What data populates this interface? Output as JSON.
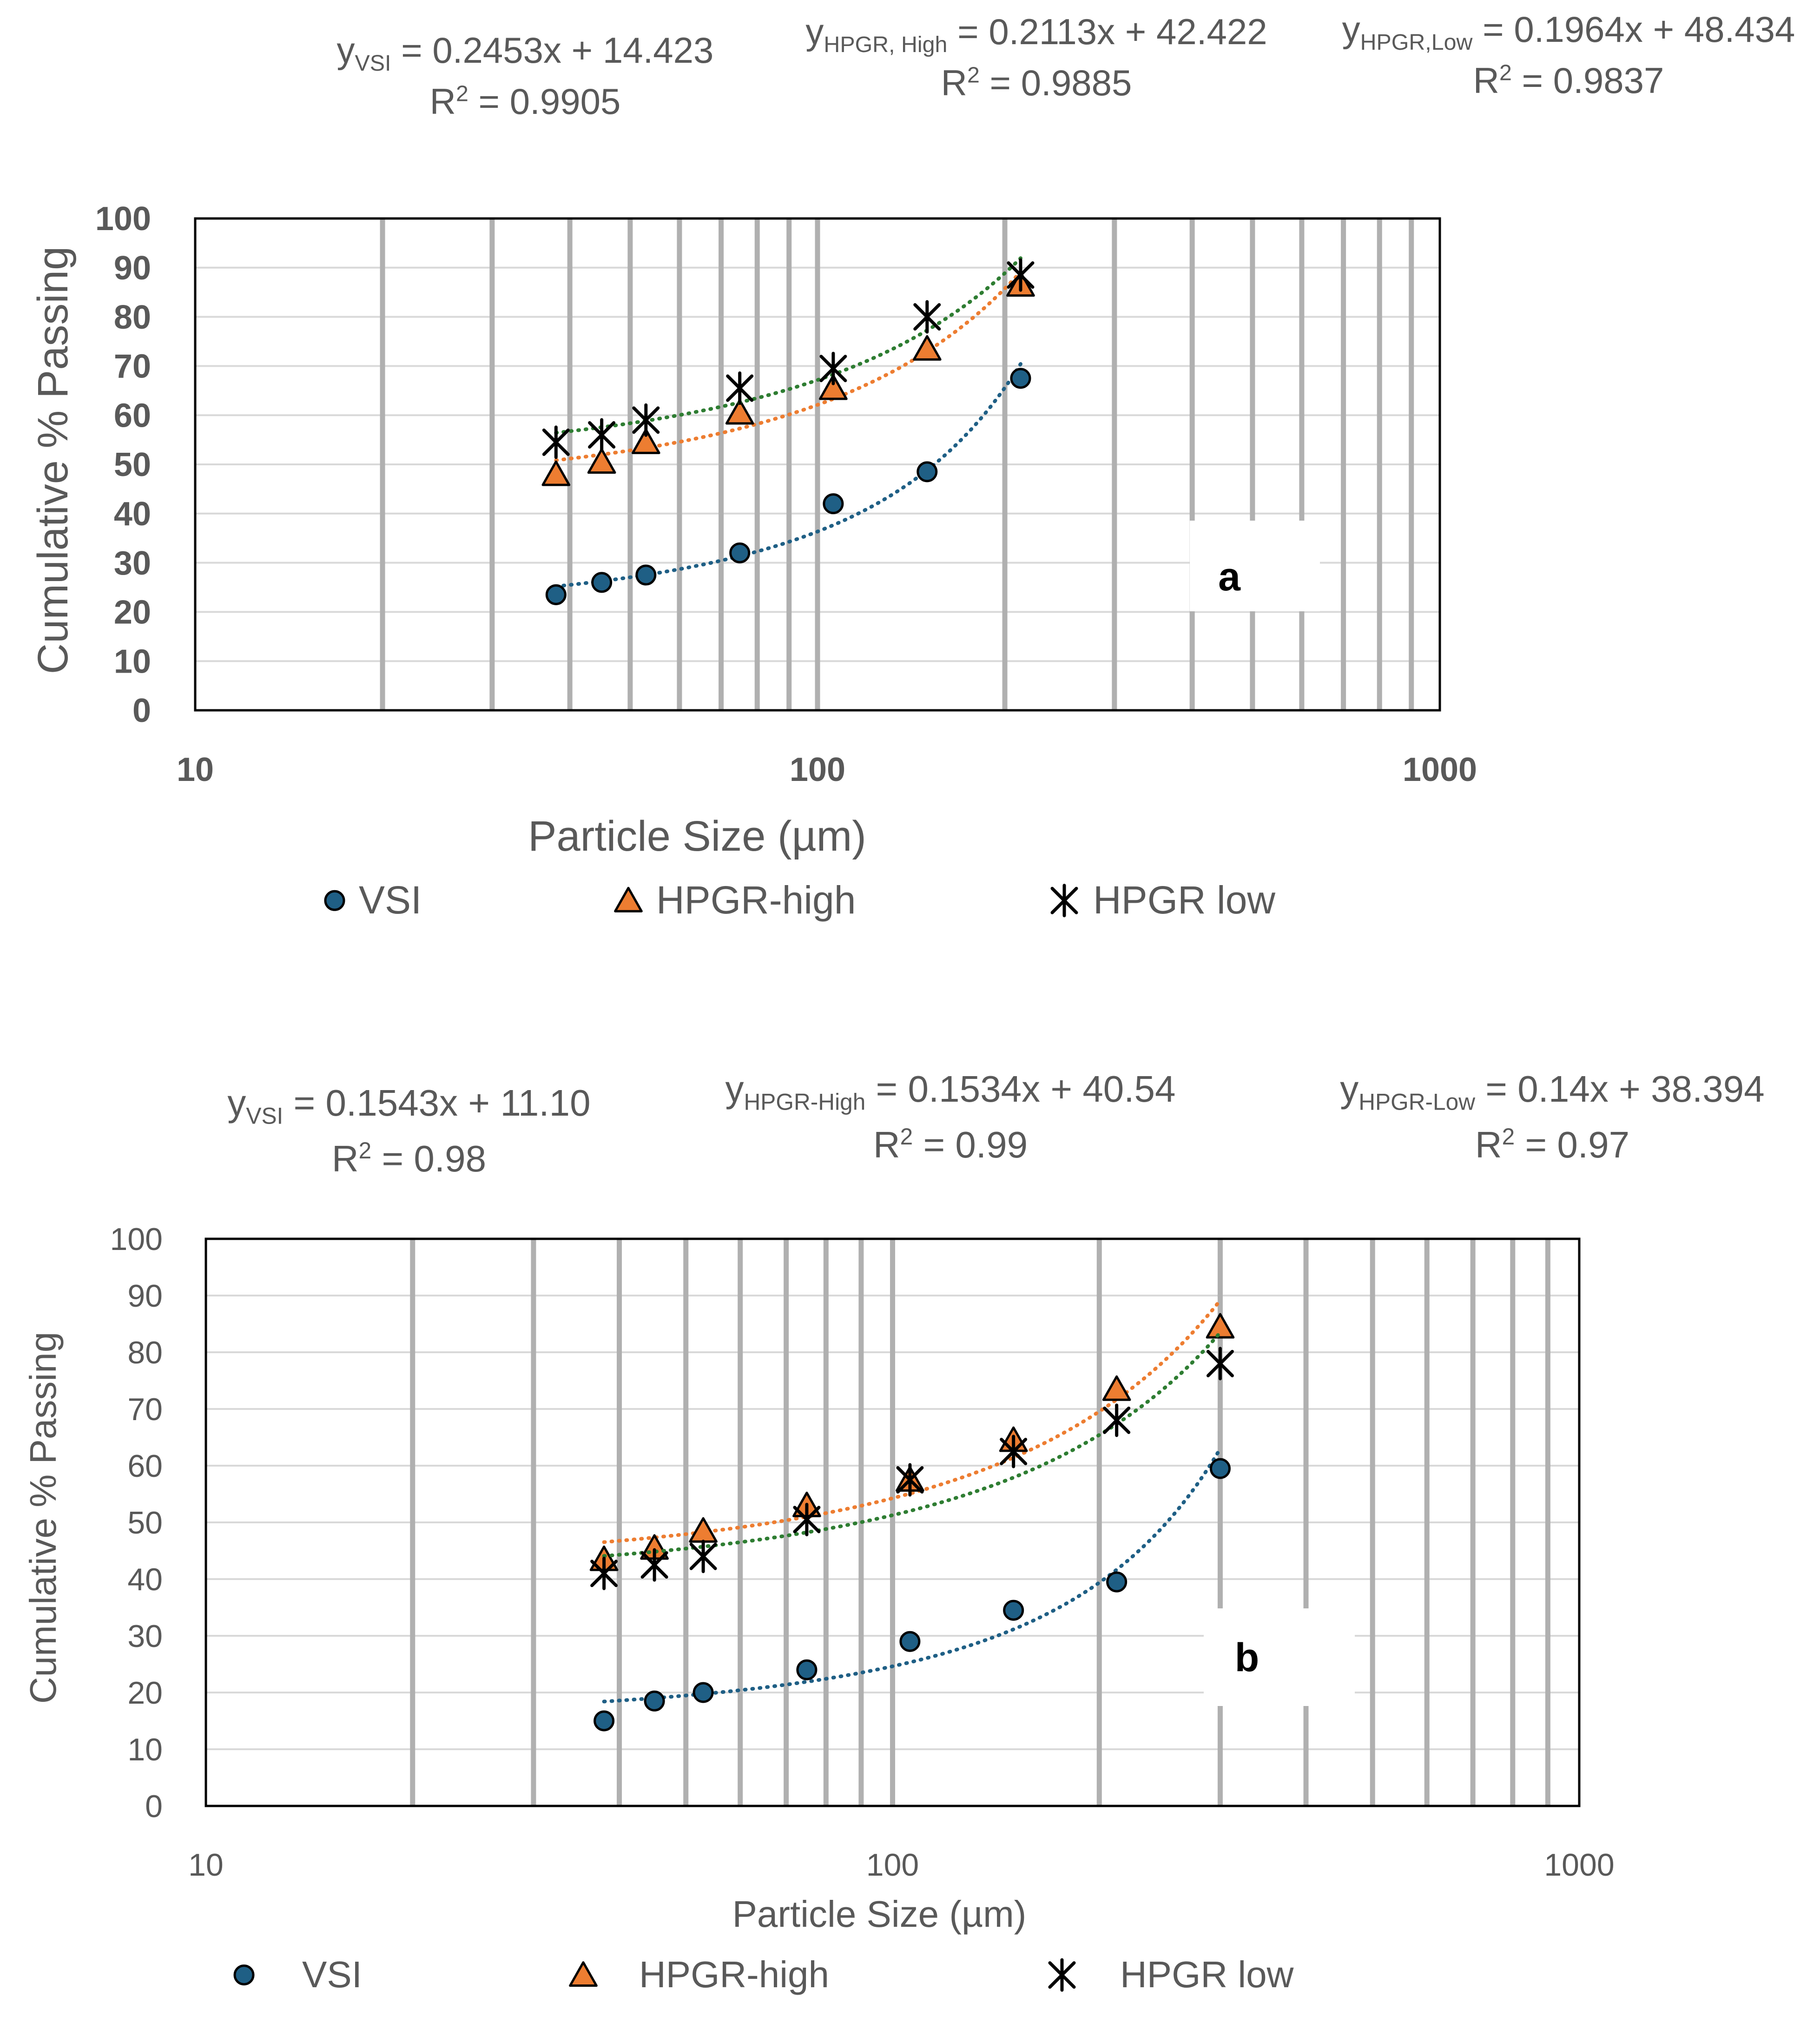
{
  "chart_data": [
    {
      "type": "scatter",
      "panel_label": "a",
      "xlabel": "Particle Size (µm)",
      "ylabel": "Cumulative % Passing",
      "xscale": "log",
      "xlim": [
        10,
        1000
      ],
      "ylim": [
        0,
        100
      ],
      "xticks": [
        "10",
        "100",
        "1000"
      ],
      "yticks": [
        "0",
        "10",
        "20",
        "30",
        "40",
        "50",
        "60",
        "70",
        "80",
        "90",
        "100"
      ],
      "grid": "vertical log minor",
      "legend_position": "bottom",
      "equations": [
        {
          "main": "y",
          "sub": "VSI",
          "rest": " = 0.2453x + 14.423",
          "r2_pre": "R",
          "r2_sup": "2",
          "r2_rest": " = 0.9905"
        },
        {
          "main": "y",
          "sub": "HPGR, High",
          "rest": " = 0.2113x + 42.422",
          "r2_pre": "R",
          "r2_sup": "2",
          "r2_rest": " = 0.9885"
        },
        {
          "main": "y",
          "sub": "HPGR,Low",
          "rest": "  = 0.1964x + 48.434",
          "r2_pre": "R",
          "r2_sup": "2",
          "r2_rest": " = 0.9837"
        }
      ],
      "series": [
        {
          "name": "VSI",
          "marker": "circle",
          "color": "#1f5f85",
          "trend_color": "#1f5f85",
          "x": [
            38,
            45,
            53,
            75,
            106,
            150,
            212
          ],
          "y": [
            23.5,
            26,
            27.5,
            32,
            42,
            48.5,
            67.5
          ],
          "trend": {
            "slope": 0.2453,
            "intercept": 14.423
          }
        },
        {
          "name": "HPGR-high",
          "marker": "triangle",
          "color": "#ed7d31",
          "trend_color": "#ed7d31",
          "x": [
            38,
            45,
            53,
            75,
            106,
            150,
            212
          ],
          "y": [
            48,
            50.5,
            54.5,
            60.5,
            65.5,
            73.5,
            86.5
          ],
          "trend": {
            "slope": 0.2113,
            "intercept": 42.422
          }
        },
        {
          "name": "HPGR low",
          "marker": "asterisk",
          "color": "#000000",
          "trend_color": "#2e7d32",
          "x": [
            38,
            45,
            53,
            75,
            106,
            150,
            212
          ],
          "y": [
            54.5,
            56,
            59,
            65.5,
            69.5,
            80,
            88.5
          ],
          "trend": {
            "slope": 0.1964,
            "intercept": 48.434
          }
        }
      ]
    },
    {
      "type": "scatter",
      "panel_label": "b",
      "xlabel": "Particle Size (µm)",
      "ylabel": "Cumulative % Passing",
      "xscale": "log",
      "xlim": [
        10,
        1000
      ],
      "ylim": [
        0,
        100
      ],
      "xticks": [
        "10",
        "100",
        "1000"
      ],
      "yticks": [
        "0",
        "10",
        "20",
        "30",
        "40",
        "50",
        "60",
        "70",
        "80",
        "90",
        "100"
      ],
      "grid": "vertical log minor",
      "legend_position": "bottom",
      "equations": [
        {
          "main": "y",
          "sub": "VSI",
          "rest": " = 0.1543x + 11.10",
          "r2_pre": "R",
          "r2_sup": "2",
          "r2_rest": " = 0.98"
        },
        {
          "main": "y",
          "sub": "HPGR-High",
          "rest": " = 0.1534x + 40.54",
          "r2_pre": "R",
          "r2_sup": "2",
          "r2_rest": " = 0.99"
        },
        {
          "main": "y",
          "sub": "HPGR-Low",
          "rest": " = 0.14x + 38.394",
          "r2_pre": "R",
          "r2_sup": "2",
          "r2_rest": " = 0.97"
        }
      ],
      "series": [
        {
          "name": "VSI",
          "marker": "circle",
          "color": "#1f5f85",
          "trend_color": "#1f5f85",
          "x": [
            38,
            45,
            53,
            75,
            106,
            150,
            212,
            300
          ],
          "y": [
            15,
            18.5,
            20,
            24,
            29,
            34.5,
            39.5,
            59.5
          ],
          "trend": {
            "slope": 0.1543,
            "intercept": 11.1
          }
        },
        {
          "name": "HPGR-high",
          "marker": "triangle",
          "color": "#ed7d31",
          "trend_color": "#ed7d31",
          "x": [
            38,
            45,
            53,
            75,
            106,
            150,
            212,
            300
          ],
          "y": [
            43.5,
            45.5,
            48.5,
            53,
            57.5,
            64.5,
            73.5,
            84.5
          ],
          "trend": {
            "slope": 0.1534,
            "intercept": 40.54
          }
        },
        {
          "name": "HPGR low",
          "marker": "asterisk",
          "color": "#000000",
          "trend_color": "#2e7d32",
          "x": [
            38,
            45,
            53,
            75,
            106,
            150,
            212,
            300
          ],
          "y": [
            41,
            42.5,
            44,
            50.5,
            57.5,
            62.5,
            68,
            78
          ],
          "trend": {
            "slope": 0.14,
            "intercept": 38.394
          }
        }
      ]
    }
  ]
}
